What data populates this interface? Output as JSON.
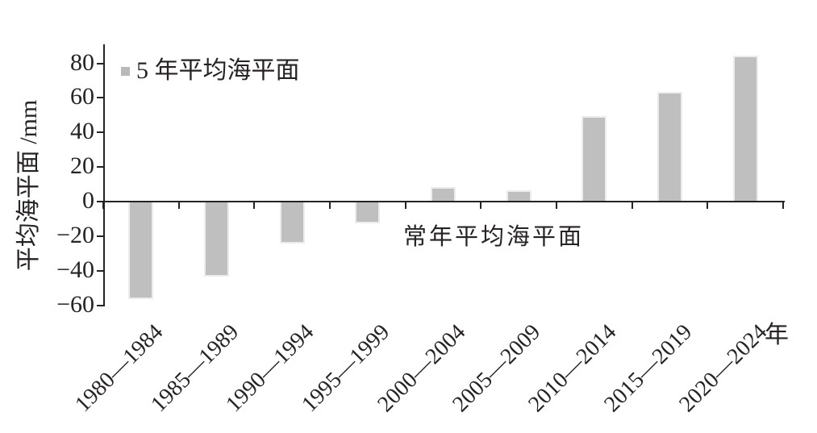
{
  "chart_data": {
    "type": "bar",
    "title": "",
    "categories": [
      "1980—1984",
      "1985—1989",
      "1990—1994",
      "1995—1999",
      "2000—2004",
      "2005—2009",
      "2010—2014",
      "2015—2019",
      "2020—2024"
    ],
    "values": [
      -56,
      -43,
      -24,
      -12,
      8,
      6,
      49,
      63,
      84
    ],
    "legend_label": "5 年平均海平面",
    "ylabel": "平均海平面 /mm",
    "x_unit_label": "年",
    "zero_line_annotation": "常年平均海平面",
    "ylim": [
      -60,
      80
    ],
    "yticks": [
      80,
      60,
      40,
      20,
      0,
      -20,
      -40,
      -60
    ],
    "ytick_interval": 20,
    "x_tick_labels_rotation_deg": -45,
    "grid": false,
    "legend_position": "top-left",
    "bar_color": "#bfbfbf",
    "bar_edge_color": "#ececec",
    "legend_swatch_color": "#b9b9b9",
    "axis_color": "#272223",
    "background_color": "#ffffff"
  }
}
